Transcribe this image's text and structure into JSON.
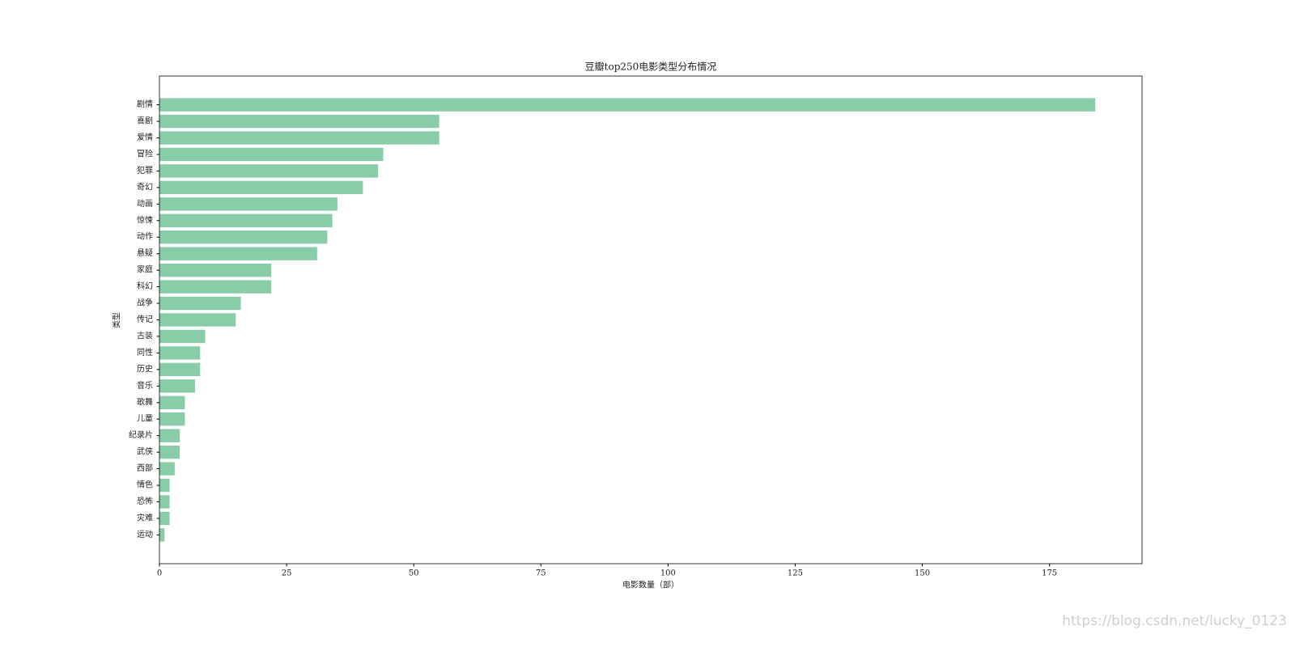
{
  "chart_data": {
    "type": "barh",
    "title": "豆瓣top250电影类型分布情况",
    "x_label": "电影数量（部）",
    "y_label": "类型",
    "watermark": "https://blog.csdn.net/lucky_0123",
    "categories": [
      "剧情",
      "喜剧",
      "爱情",
      "冒险",
      "犯罪",
      "奇幻",
      "动画",
      "惊悚",
      "动作",
      "悬疑",
      "家庭",
      "科幻",
      "战争",
      "传记",
      "古装",
      "同性",
      "历史",
      "音乐",
      "歌舞",
      "儿童",
      "纪录片",
      "武侠",
      "西部",
      "情色",
      "恐怖",
      "灾难",
      "运动"
    ],
    "values": [
      184,
      55,
      55,
      44,
      43,
      40,
      35,
      34,
      33,
      31,
      22,
      22,
      16,
      15,
      9,
      8,
      8,
      7,
      5,
      5,
      4,
      4,
      3,
      2,
      2,
      2,
      1
    ],
    "color": "#88cda8",
    "xlim": [
      0,
      193.2
    ],
    "xticks": [
      0,
      25,
      50,
      75,
      100,
      125,
      150,
      175
    ],
    "grid": false
  }
}
